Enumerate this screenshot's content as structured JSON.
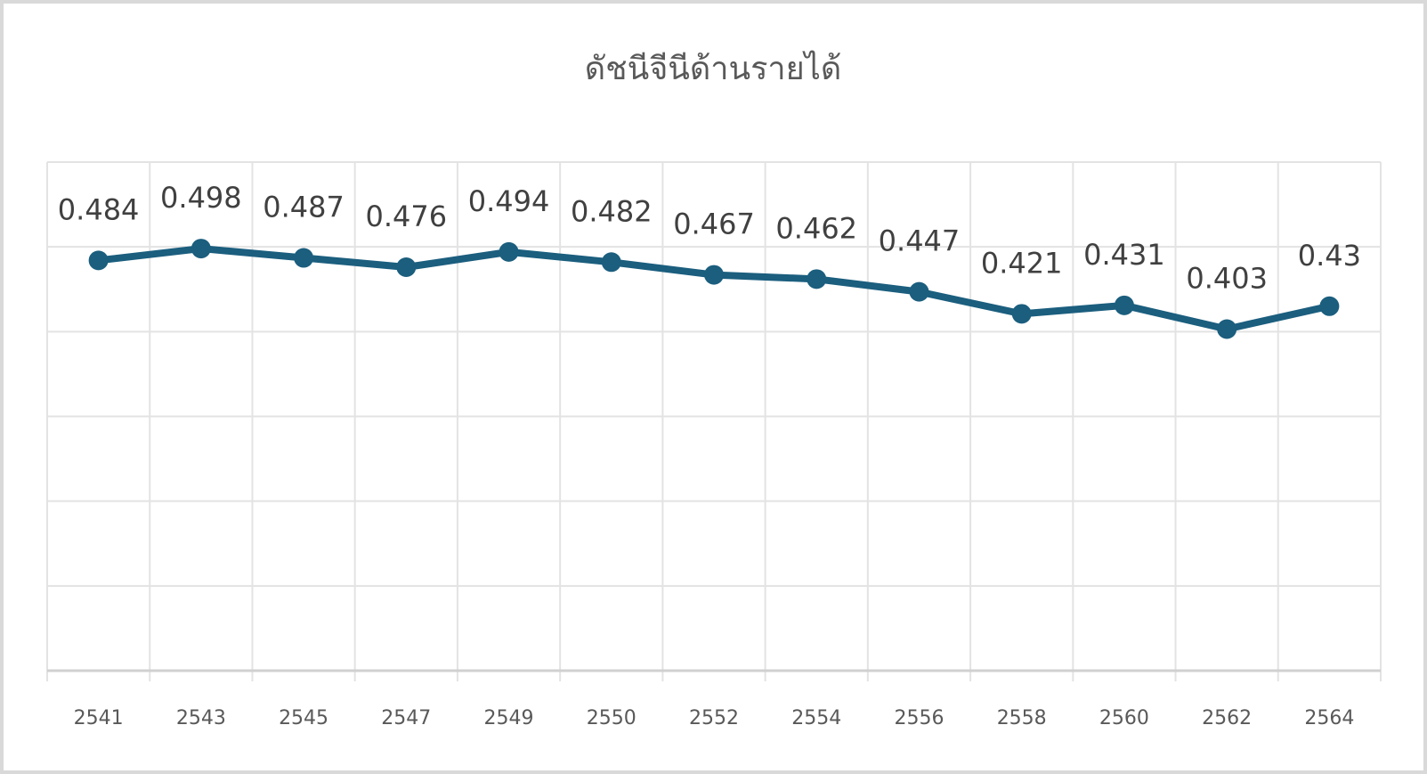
{
  "chart_data": {
    "type": "line",
    "title": "ดัชนีจีนีด้านรายได้",
    "categories": [
      "2541",
      "2543",
      "2545",
      "2547",
      "2549",
      "2550",
      "2552",
      "2554",
      "2556",
      "2558",
      "2560",
      "2562",
      "2564"
    ],
    "series": [
      {
        "name": "ดัชนีจีนีด้านรายได้",
        "color": "#1b5e7e",
        "values": [
          0.484,
          0.498,
          0.487,
          0.476,
          0.494,
          0.482,
          0.467,
          0.462,
          0.447,
          0.421,
          0.431,
          0.403,
          0.43
        ]
      }
    ],
    "ylim": [
      0,
      0.6
    ],
    "yticks": [
      0,
      0.1,
      0.2,
      0.3,
      0.4,
      0.5,
      0.6
    ],
    "grid": true
  }
}
